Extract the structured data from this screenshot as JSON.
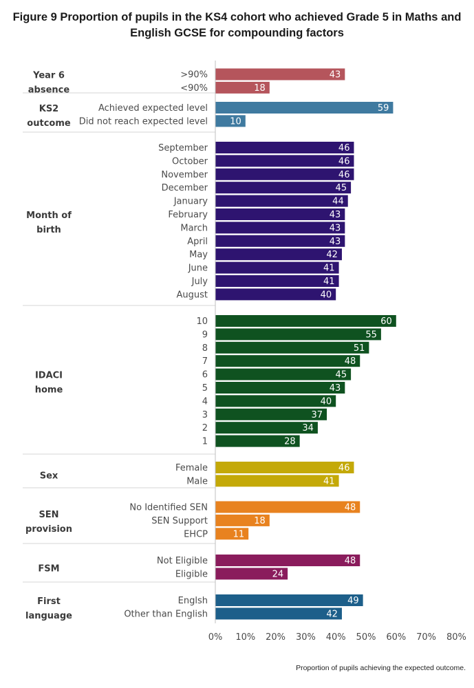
{
  "chart_data": {
    "type": "bar",
    "orientation": "horizontal",
    "title": "Figure 9 Proportion of pupils in the KS4 cohort who achieved Grade 5 in Maths and English GCSE for compounding factors",
    "title_lines": [
      "Figure 9 Proportion of pupils in the KS4 cohort who achieved Grade 5 in Maths and",
      "English GCSE for compounding factors"
    ],
    "xlabel": "Proportion of pupils achieving the expected outcome.",
    "xlim": [
      0,
      80
    ],
    "xticks": [
      0,
      10,
      20,
      30,
      40,
      50,
      60,
      70,
      80
    ],
    "xtick_labels": [
      "0%",
      "10%",
      "20%",
      "30%",
      "40%",
      "50%",
      "60%",
      "70%",
      "80%"
    ],
    "groups": [
      {
        "name": "Year 6 absence",
        "label_lines": [
          "Year 6",
          "absence"
        ],
        "color": "#b5555c",
        "categories": [
          ">90%",
          "<90%"
        ],
        "values": [
          43,
          18
        ]
      },
      {
        "name": "KS2 outcome",
        "label_lines": [
          "KS2",
          "outcome"
        ],
        "color": "#3f7aa0",
        "categories": [
          "Achieved expected level",
          "Did not reach expected level"
        ],
        "values": [
          59,
          10
        ]
      },
      {
        "name": "Month of birth",
        "label_lines": [
          "Month of",
          "birth"
        ],
        "color": "#2e1470",
        "categories": [
          "September",
          "October",
          "November",
          "December",
          "January",
          "February",
          "March",
          "April",
          "May",
          "June",
          "July",
          "August"
        ],
        "values": [
          46,
          46,
          46,
          45,
          44,
          43,
          43,
          43,
          42,
          41,
          41,
          40
        ]
      },
      {
        "name": "IDACI home",
        "label_lines": [
          "IDACI",
          "home"
        ],
        "color": "#0f5220",
        "categories": [
          "10",
          "9",
          "8",
          "7",
          "6",
          "5",
          "4",
          "3",
          "2",
          "1"
        ],
        "values": [
          60,
          55,
          51,
          48,
          45,
          43,
          40,
          37,
          34,
          28
        ]
      },
      {
        "name": "Sex",
        "label_lines": [
          "Sex"
        ],
        "color": "#c4a908",
        "categories": [
          "Female",
          "Male"
        ],
        "values": [
          46,
          41
        ]
      },
      {
        "name": "SEN provision",
        "label_lines": [
          "SEN",
          "provision"
        ],
        "color": "#e8821f",
        "categories": [
          "No Identified SEN",
          "SEN Support",
          "EHCP"
        ],
        "values": [
          48,
          18,
          11
        ]
      },
      {
        "name": "FSM",
        "label_lines": [
          "FSM"
        ],
        "color": "#8a1c5c",
        "categories": [
          "Not Eligible",
          "Eligible"
        ],
        "values": [
          48,
          24
        ]
      },
      {
        "name": "First language",
        "label_lines": [
          "First",
          "language"
        ],
        "color": "#1d5f8a",
        "categories": [
          "Englsh",
          "Other than English"
        ],
        "values": [
          49,
          42
        ]
      }
    ]
  }
}
